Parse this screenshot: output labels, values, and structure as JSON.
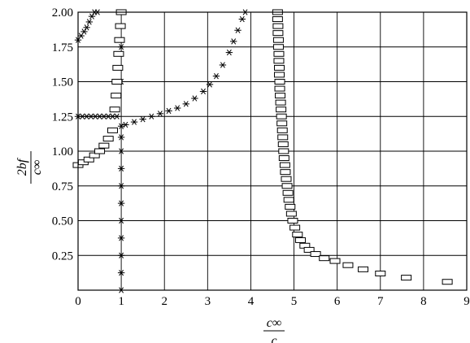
{
  "chart_data": {
    "type": "scatter",
    "xlabel": {
      "numerator": "c∞",
      "denominator": "c"
    },
    "ylabel": {
      "numerator": "2bf",
      "denominator": "c∞"
    },
    "xlim": [
      0,
      9
    ],
    "ylim": [
      0,
      2.0
    ],
    "grid": true,
    "x_ticks": [
      0,
      1,
      2,
      3,
      4,
      5,
      6,
      7,
      8,
      9
    ],
    "x_tick_labels": [
      "0",
      "1",
      "2",
      "3",
      "4",
      "5",
      "6",
      "7",
      "8",
      "9"
    ],
    "y_ticks": [
      0.25,
      0.5,
      0.75,
      1.0,
      1.25,
      1.5,
      1.75,
      2.0
    ],
    "y_tick_labels": [
      "0.25",
      "0.50",
      "0.75",
      "1.00",
      "1.25",
      "1.50",
      "1.75",
      "2.00"
    ],
    "series": [
      {
        "marker": "star",
        "color": "#000000",
        "points": [
          [
            1.0,
            0.0
          ],
          [
            1.0,
            0.125
          ],
          [
            1.0,
            0.25
          ],
          [
            1.0,
            0.375
          ],
          [
            1.0,
            0.5
          ],
          [
            1.0,
            0.625
          ],
          [
            1.0,
            0.75
          ],
          [
            1.0,
            0.875
          ],
          [
            1.0,
            1.0
          ],
          [
            1.0,
            1.1
          ],
          [
            1.0,
            1.18
          ],
          [
            1.0,
            1.5
          ],
          [
            1.0,
            1.75
          ],
          [
            1.1,
            1.19
          ],
          [
            1.3,
            1.21
          ],
          [
            1.5,
            1.23
          ],
          [
            1.7,
            1.25
          ],
          [
            1.9,
            1.27
          ],
          [
            2.1,
            1.29
          ],
          [
            2.3,
            1.31
          ],
          [
            2.5,
            1.34
          ],
          [
            2.7,
            1.38
          ],
          [
            2.9,
            1.43
          ],
          [
            3.05,
            1.48
          ],
          [
            3.2,
            1.54
          ],
          [
            3.35,
            1.62
          ],
          [
            3.5,
            1.71
          ],
          [
            3.6,
            1.79
          ],
          [
            3.7,
            1.87
          ],
          [
            3.8,
            1.95
          ],
          [
            3.87,
            2.0
          ],
          [
            0.0,
            1.25
          ],
          [
            0.1,
            1.25
          ],
          [
            0.2,
            1.25
          ],
          [
            0.3,
            1.25
          ],
          [
            0.4,
            1.25
          ],
          [
            0.5,
            1.25
          ],
          [
            0.6,
            1.25
          ],
          [
            0.7,
            1.25
          ],
          [
            0.8,
            1.25
          ],
          [
            0.9,
            1.25
          ],
          [
            0.0,
            1.8
          ],
          [
            0.07,
            1.83
          ],
          [
            0.14,
            1.86
          ],
          [
            0.2,
            1.89
          ],
          [
            0.26,
            1.93
          ],
          [
            0.32,
            1.97
          ],
          [
            0.38,
            2.0
          ],
          [
            0.45,
            2.0
          ]
        ]
      },
      {
        "marker": "rectangle",
        "color": "#000000",
        "points": [
          [
            0.0,
            0.9
          ],
          [
            0.12,
            0.92
          ],
          [
            0.25,
            0.94
          ],
          [
            0.38,
            0.97
          ],
          [
            0.5,
            1.0
          ],
          [
            0.6,
            1.04
          ],
          [
            0.7,
            1.09
          ],
          [
            0.8,
            1.15
          ],
          [
            0.85,
            1.3
          ],
          [
            0.88,
            1.4
          ],
          [
            0.9,
            1.5
          ],
          [
            0.92,
            1.6
          ],
          [
            0.94,
            1.7
          ],
          [
            0.96,
            1.8
          ],
          [
            0.98,
            1.9
          ],
          [
            1.0,
            2.0
          ],
          [
            4.62,
            2.0
          ],
          [
            4.62,
            1.95
          ],
          [
            4.63,
            1.9
          ],
          [
            4.63,
            1.85
          ],
          [
            4.64,
            1.8
          ],
          [
            4.64,
            1.75
          ],
          [
            4.65,
            1.7
          ],
          [
            4.65,
            1.65
          ],
          [
            4.66,
            1.6
          ],
          [
            4.66,
            1.55
          ],
          [
            4.67,
            1.5
          ],
          [
            4.67,
            1.45
          ],
          [
            4.68,
            1.4
          ],
          [
            4.69,
            1.35
          ],
          [
            4.7,
            1.3
          ],
          [
            4.71,
            1.25
          ],
          [
            4.72,
            1.2
          ],
          [
            4.73,
            1.15
          ],
          [
            4.74,
            1.1
          ],
          [
            4.75,
            1.05
          ],
          [
            4.76,
            1.0
          ],
          [
            4.77,
            0.95
          ],
          [
            4.79,
            0.9
          ],
          [
            4.8,
            0.85
          ],
          [
            4.82,
            0.8
          ],
          [
            4.84,
            0.75
          ],
          [
            4.86,
            0.7
          ],
          [
            4.88,
            0.65
          ],
          [
            4.91,
            0.6
          ],
          [
            4.94,
            0.55
          ],
          [
            4.97,
            0.5
          ],
          [
            5.02,
            0.45
          ],
          [
            5.08,
            0.4
          ],
          [
            5.15,
            0.36
          ],
          [
            5.25,
            0.32
          ],
          [
            5.35,
            0.29
          ],
          [
            5.5,
            0.26
          ],
          [
            5.7,
            0.23
          ],
          [
            5.95,
            0.21
          ],
          [
            6.25,
            0.18
          ],
          [
            6.6,
            0.15
          ],
          [
            7.0,
            0.12
          ],
          [
            7.6,
            0.09
          ],
          [
            8.55,
            0.06
          ]
        ]
      }
    ]
  }
}
